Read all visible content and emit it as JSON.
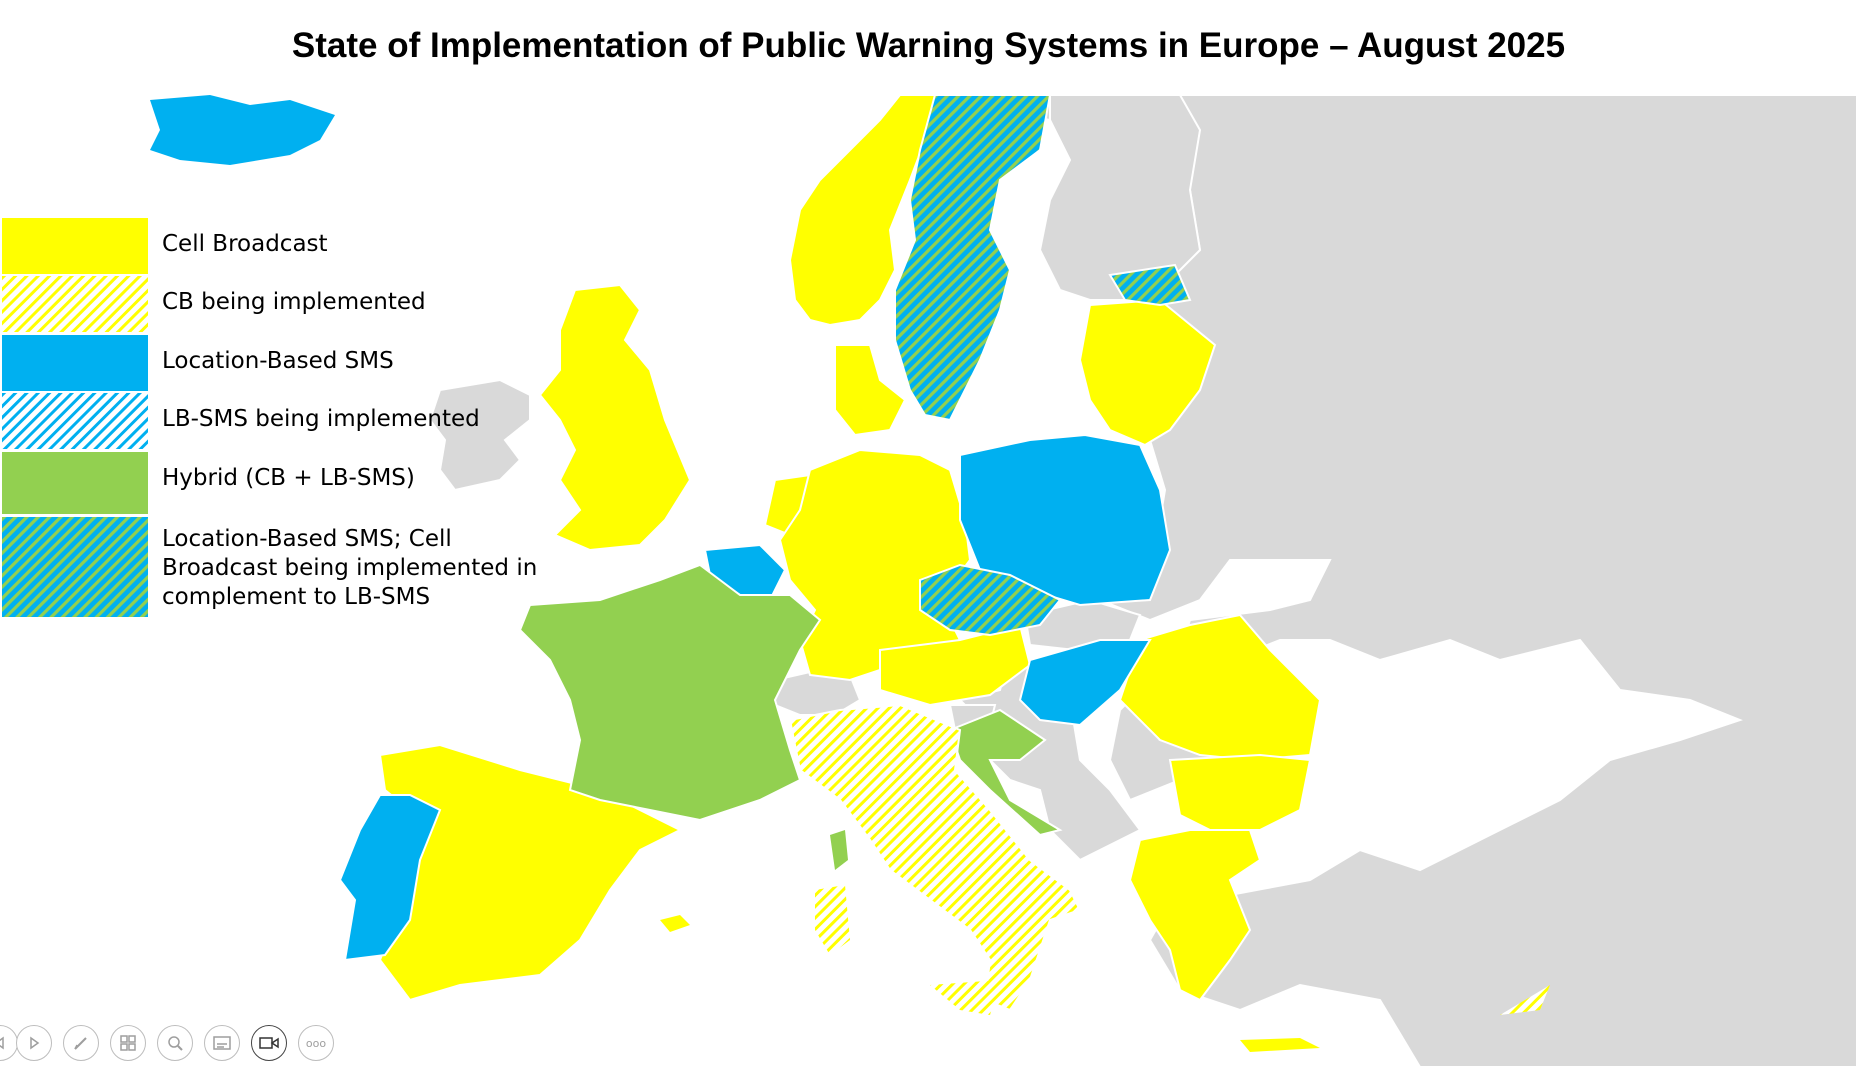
{
  "title": "State of Implementation of Public Warning Systems in Europe – August 2025",
  "colors": {
    "cell_broadcast": "#ffff00",
    "location_sms": "#00b0f0",
    "hybrid": "#92d050",
    "other_country": "#d9d9d9",
    "border": "#ffffff"
  },
  "legend": [
    {
      "label": "Cell Broadcast",
      "pattern": "solid-yellow"
    },
    {
      "label": "CB being implemented",
      "pattern": "hatch-yellow"
    },
    {
      "label": "Location-Based SMS",
      "pattern": "solid-blue"
    },
    {
      "label": "LB-SMS being implemented",
      "pattern": "hatch-blue"
    },
    {
      "label": "Hybrid (CB + LB-SMS)",
      "pattern": "solid-green"
    },
    {
      "label": "Location-Based SMS; Cell\nBroadcast being implemented in\ncomplement to LB-SMS",
      "pattern": "hatch-blue-green"
    }
  ],
  "toolbar": {
    "buttons": [
      "previous-icon",
      "next-icon",
      "pen-icon",
      "slides-grid-icon",
      "zoom-icon",
      "subtitles-icon",
      "camera-icon",
      "more-icon"
    ],
    "more_label": "ooo"
  }
}
